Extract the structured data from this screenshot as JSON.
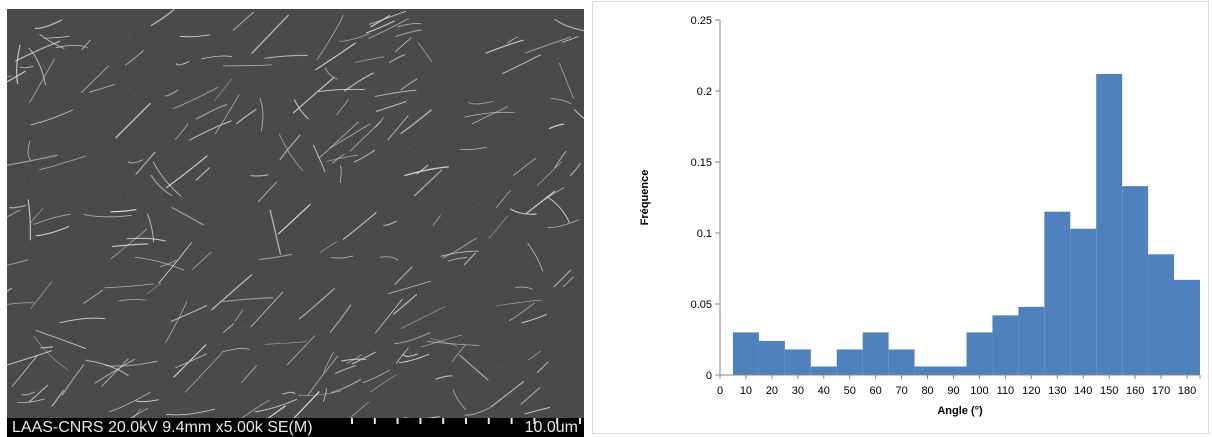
{
  "sem_micrograph": {
    "caption": "LAAS-CNRS 20.0kV 9.4mm x5.00k SE(M)",
    "scale_bar_label": "10.0um",
    "background_color": "#4a4a4a",
    "fiber_color": "#d8d8d8"
  },
  "chart_data": {
    "type": "bar",
    "title": "",
    "xlabel": "Angle (°)",
    "ylabel": "Fréquence",
    "xlim": [
      0,
      185
    ],
    "ylim": [
      0,
      0.25
    ],
    "x_ticks": [
      0,
      10,
      20,
      30,
      40,
      50,
      60,
      70,
      80,
      90,
      100,
      110,
      120,
      130,
      140,
      150,
      160,
      170,
      180
    ],
    "x_tick_labels": [
      "0",
      "10",
      "20",
      "30",
      "40",
      "50",
      "60",
      "70",
      "80",
      "90",
      "100",
      "110",
      "120",
      "130",
      "140",
      "150",
      "160",
      "170",
      "180"
    ],
    "y_ticks": [
      0,
      0.05,
      0.1,
      0.15,
      0.2,
      0.25
    ],
    "y_tick_labels": [
      "0",
      "0.05",
      "0.1",
      "0.15",
      "0.2",
      "0.25"
    ],
    "bin_edges": [
      5,
      15,
      25,
      35,
      45,
      55,
      65,
      75,
      85,
      95,
      105,
      115,
      125,
      135,
      145,
      155,
      165,
      175,
      185
    ],
    "values": [
      0.03,
      0.024,
      0.018,
      0.006,
      0.018,
      0.03,
      0.018,
      0.006,
      0.006,
      0.03,
      0.042,
      0.048,
      0.115,
      0.103,
      0.212,
      0.133,
      0.085,
      0.067
    ],
    "bar_color": "#4f81bd",
    "grid": false,
    "legend": "none"
  }
}
